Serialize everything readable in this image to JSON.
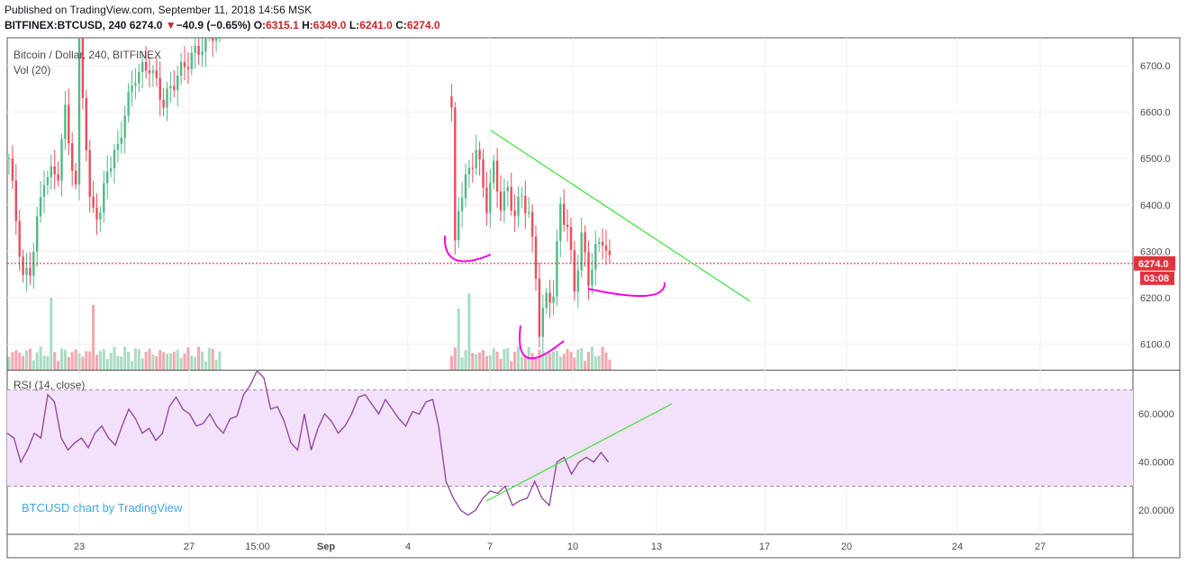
{
  "header": {
    "published": "Published on TradingView.com, September 11, 2018 14:56 MSK",
    "symbol": "BITFINEX:BTCUSD, 240",
    "last": "6274.0",
    "change": "−40.9 (−0.65%)",
    "o_label": "O:",
    "o_value": "6315.1",
    "h_label": "H:",
    "h_value": "6349.0",
    "l_label": "L:",
    "l_value": "6241.0",
    "c_label": "C:",
    "c_value": "6274.0"
  },
  "legend": {
    "series": "Bitcoin / Dollar, 240, BITFINEX",
    "volume": "Vol (20)",
    "rsi": "RSI (14, close)",
    "watermark": "BTCUSD chart by TradingView"
  },
  "price_badge": {
    "price": "6274.0",
    "countdown": "03:08"
  },
  "colors": {
    "up": "#53b987",
    "down": "#eb4d5c",
    "vol_up": "#a9dcc3",
    "vol_down": "#f5a6ae",
    "rsi_line": "#8e3f9e",
    "rsi_band": "#f3e1fa",
    "trend": "#38e038",
    "marker": "#ff00e0",
    "price_line": "#c62828",
    "badge": "#e0343d"
  },
  "chart_data": [
    {
      "type": "candlestick",
      "title": "Bitcoin / Dollar, 240, BITFINEX",
      "ylabel": "",
      "ylim": [
        6045,
        6760
      ],
      "y_ticks": [
        6100,
        6200,
        6300,
        6400,
        6500,
        6600,
        6700
      ],
      "y_tick_labels": [
        "6100.0",
        "6200.0",
        "6300.0",
        "6400.0",
        "6500.0",
        "6600.0",
        "6700.0"
      ],
      "x_tick_labels": [
        "23",
        "27",
        "15:00",
        "Sep",
        "4",
        "7",
        "10",
        "13",
        "17",
        "20",
        "24",
        "27"
      ],
      "last_price": 6274.0,
      "grid": true,
      "candles": [],
      "volume": {
        "name": "Vol (20)"
      }
    },
    {
      "type": "line",
      "title": "RSI (14, close)",
      "ylim": [
        10,
        78
      ],
      "y_ticks": [
        20,
        40,
        60
      ],
      "y_tick_labels": [
        "20.0000",
        "40.0000",
        "60.0000"
      ],
      "band": [
        30,
        70
      ],
      "series": [
        {
          "name": "RSI (14, close)",
          "values": [
            52,
            50,
            40,
            45,
            52,
            50,
            68,
            65,
            50,
            45,
            48,
            50,
            46,
            52,
            55,
            50,
            47,
            55,
            62,
            58,
            52,
            54,
            49,
            52,
            63,
            67,
            62,
            60,
            55,
            56,
            60,
            55,
            52,
            58,
            59,
            68,
            72,
            78,
            75,
            62,
            63,
            57,
            48,
            45,
            60,
            45,
            54,
            60,
            57,
            52,
            55,
            60,
            67,
            68,
            64,
            60,
            66,
            62,
            58,
            55,
            61,
            60,
            65,
            66,
            55,
            32,
            25,
            20,
            18,
            20,
            25,
            28,
            27,
            30,
            22,
            24,
            25,
            32,
            25,
            22,
            40,
            42,
            35,
            40,
            42,
            40,
            44,
            40
          ]
        }
      ]
    }
  ]
}
